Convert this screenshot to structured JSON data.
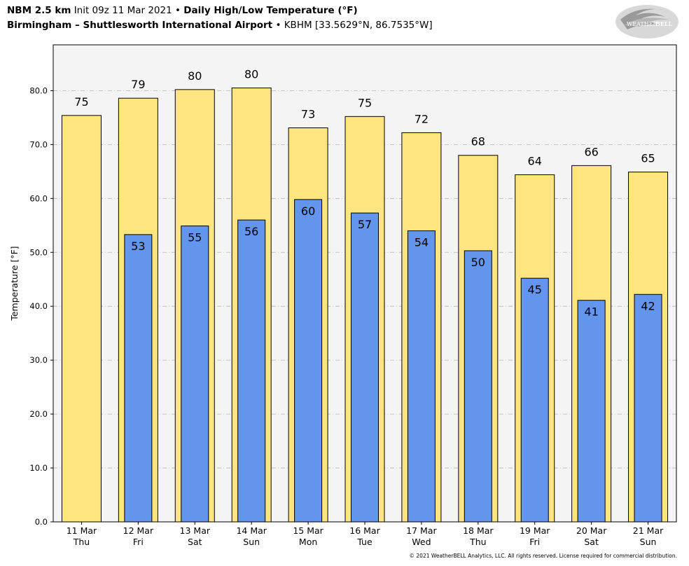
{
  "header": {
    "line1": {
      "model": "NBM 2.5 km",
      "init": "Init 09z 11 Mar 2021",
      "sep": "•",
      "product": "Daily High/Low Temperature (°F)"
    },
    "line2": {
      "station": "Birmingham – Shuttlesworth International Airport",
      "sep": "•",
      "coords": "KBHM [33.5629°N, 86.7535°W]"
    }
  },
  "logo": {
    "text_main": "WEATHER",
    "text_bold": "BELL"
  },
  "copyright": "© 2021 WeatherBELL Analytics, LLC. All rights reserved. License required for commercial distribution.",
  "chart_data": {
    "type": "bar",
    "ylabel": "Temperature [°F]",
    "ylim": [
      0,
      88.5
    ],
    "yticks": [
      0,
      10,
      20,
      30,
      40,
      50,
      60,
      70,
      80
    ],
    "ytick_labels": [
      "0.0",
      "10.0",
      "20.0",
      "30.0",
      "40.0",
      "50.0",
      "60.0",
      "70.0",
      "80.0"
    ],
    "grid": true,
    "categories": [
      [
        "11 Mar",
        "Thu"
      ],
      [
        "12 Mar",
        "Fri"
      ],
      [
        "13 Mar",
        "Sat"
      ],
      [
        "14 Mar",
        "Sun"
      ],
      [
        "15 Mar",
        "Mon"
      ],
      [
        "16 Mar",
        "Tue"
      ],
      [
        "17 Mar",
        "Wed"
      ],
      [
        "18 Mar",
        "Thu"
      ],
      [
        "19 Mar",
        "Fri"
      ],
      [
        "20 Mar",
        "Sat"
      ],
      [
        "21 Mar",
        "Sun"
      ]
    ],
    "series": [
      {
        "values": [
          75.4,
          78.6,
          80.2,
          80.5,
          73.1,
          75.2,
          72.2,
          68.0,
          64.4,
          66.1,
          64.9
        ],
        "labels": [
          "75",
          "79",
          "80",
          "80",
          "73",
          "75",
          "72",
          "68",
          "64",
          "66",
          "65"
        ],
        "color": "#FFE57F"
      },
      {
        "values": [
          null,
          53.3,
          54.9,
          56.0,
          59.8,
          57.3,
          54.0,
          50.3,
          45.2,
          41.1,
          42.2
        ],
        "labels": [
          "",
          "53",
          "55",
          "56",
          "60",
          "57",
          "54",
          "50",
          "45",
          "41",
          "42"
        ],
        "color": "#6495ED"
      }
    ],
    "plot_background": "#F4F4F4"
  }
}
